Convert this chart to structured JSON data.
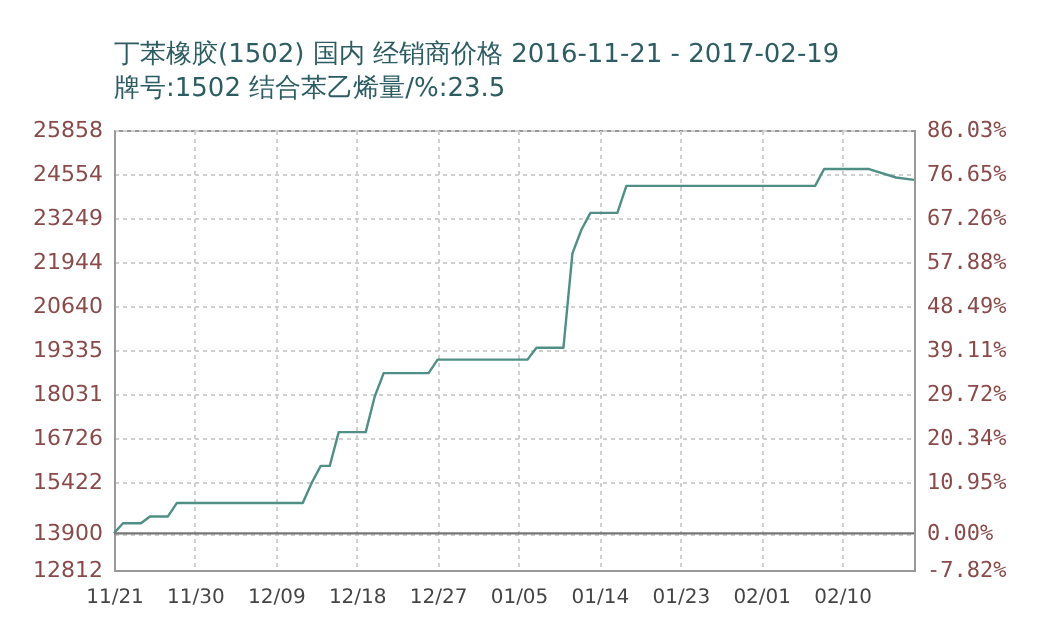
{
  "chart_data": {
    "type": "line",
    "title": "丁苯橡胶(1502) 国内 经销商价格 2016-11-21 - 2017-02-19",
    "subtitle": "牌号:1502 结合苯乙烯量/%:23.5",
    "x": [
      "2016-11-21",
      "2016-11-22",
      "2016-11-24",
      "2016-11-25",
      "2016-11-27",
      "2016-11-28",
      "2016-12-12",
      "2016-12-13",
      "2016-12-14",
      "2016-12-15",
      "2016-12-16",
      "2016-12-19",
      "2016-12-20",
      "2016-12-21",
      "2016-12-26",
      "2016-12-27",
      "2017-01-06",
      "2017-01-07",
      "2017-01-10",
      "2017-01-11",
      "2017-01-12",
      "2017-01-13",
      "2017-01-16",
      "2017-01-17",
      "2017-02-07",
      "2017-02-08",
      "2017-02-13",
      "2017-02-16",
      "2017-02-18"
    ],
    "series": [
      {
        "color": "#4f8f86",
        "values": [
          13900,
          14200,
          14200,
          14400,
          14400,
          14800,
          14800,
          15400,
          15900,
          15900,
          16900,
          16900,
          17950,
          18650,
          18650,
          19050,
          19050,
          19400,
          19400,
          22200,
          22900,
          23400,
          23400,
          24200,
          24200,
          24700,
          24700,
          24450,
          24380
        ]
      }
    ],
    "xlim": [
      "2016-11-21",
      "2017-02-18"
    ],
    "xticks": [
      {
        "value": "2016-11-21",
        "label": "11/21"
      },
      {
        "value": "2016-11-30",
        "label": "11/30"
      },
      {
        "value": "2016-12-09",
        "label": "12/09"
      },
      {
        "value": "2016-12-18",
        "label": "12/18"
      },
      {
        "value": "2016-12-27",
        "label": "12/27"
      },
      {
        "value": "2017-01-05",
        "label": "01/05"
      },
      {
        "value": "2017-01-14",
        "label": "01/14"
      },
      {
        "value": "2017-01-23",
        "label": "01/23"
      },
      {
        "value": "2017-02-01",
        "label": "02/01"
      },
      {
        "value": "2017-02-10",
        "label": "02/10"
      }
    ],
    "ylim": [
      12812,
      25858
    ],
    "yticks": [
      12812,
      13900,
      15422,
      16726,
      18031,
      19335,
      20640,
      21944,
      23249,
      24554,
      25858
    ],
    "y2lim": [
      -7.82,
      86.03
    ],
    "y2ticks": [
      {
        "value": -7.82,
        "label": "-7.82%"
      },
      {
        "value": 0,
        "label": "0.00%"
      },
      {
        "value": 10.95,
        "label": "10.95%"
      },
      {
        "value": 20.34,
        "label": "20.34%"
      },
      {
        "value": 29.72,
        "label": "29.72%"
      },
      {
        "value": 39.11,
        "label": "39.11%"
      },
      {
        "value": 48.49,
        "label": "48.49%"
      },
      {
        "value": 57.88,
        "label": "57.88%"
      },
      {
        "value": 67.26,
        "label": "67.26%"
      },
      {
        "value": 76.65,
        "label": "76.65%"
      },
      {
        "value": 86.03,
        "label": "86.03%"
      }
    ],
    "ref_lines": [
      {
        "axis": "y2",
        "value": 0,
        "color": "#777777"
      }
    ],
    "grid": true,
    "line_style": "solid"
  }
}
